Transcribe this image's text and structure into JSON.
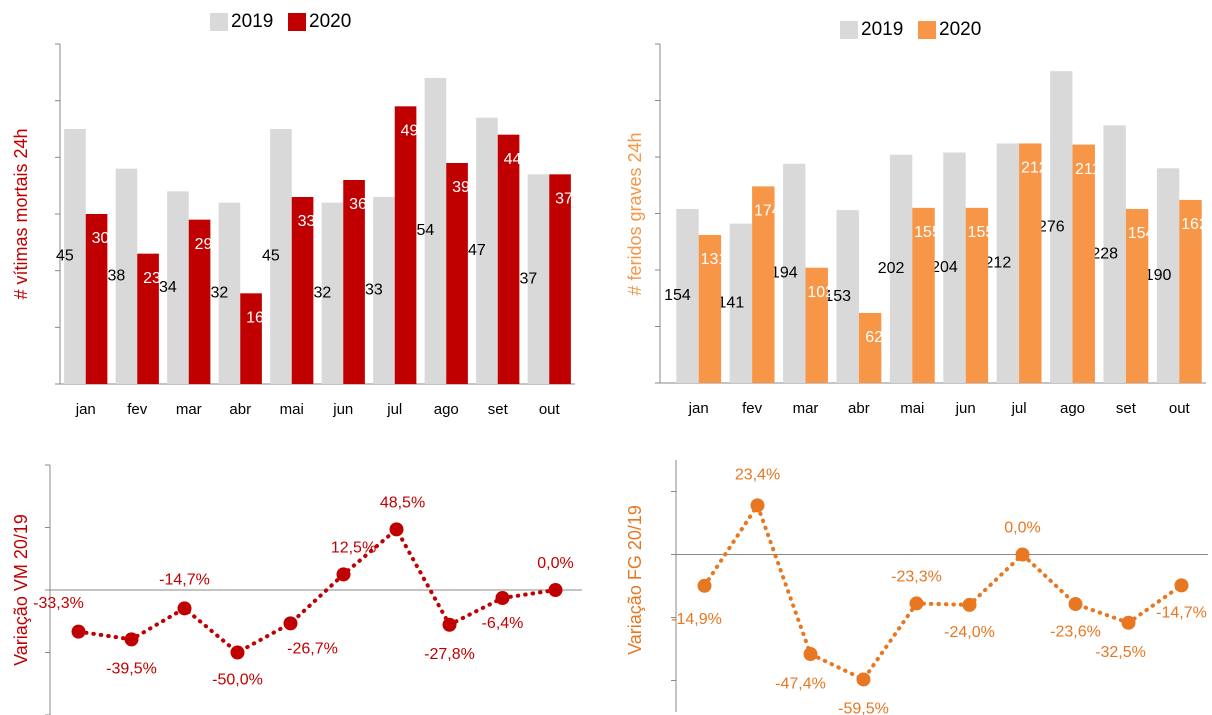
{
  "chart_data": [
    {
      "type": "bar",
      "y_label": "# vítimas mortais 24h",
      "categories": [
        "jan",
        "fev",
        "mar",
        "abr",
        "mai",
        "jun",
        "jul",
        "ago",
        "set",
        "out"
      ],
      "series": [
        {
          "name": "2019",
          "color": "#d9d9d9",
          "label_color": "#000000",
          "values": [
            45,
            38,
            34,
            32,
            45,
            32,
            33,
            54,
            47,
            37
          ]
        },
        {
          "name": "2020",
          "color": "#c00000",
          "label_color": "#ffffff",
          "values": [
            30,
            23,
            29,
            16,
            33,
            36,
            49,
            39,
            44,
            37
          ]
        }
      ],
      "ylim": [
        0,
        60
      ],
      "yticks": [
        0,
        10,
        20,
        30,
        40,
        50,
        60
      ],
      "ytick_labels": false,
      "label_color": "#c00000"
    },
    {
      "type": "bar",
      "y_label": "# feridos graves 24h",
      "categories": [
        "jan",
        "fev",
        "mar",
        "abr",
        "mai",
        "jun",
        "jul",
        "ago",
        "set",
        "out"
      ],
      "series": [
        {
          "name": "2019",
          "color": "#d9d9d9",
          "label_color": "#000000",
          "values": [
            154,
            141,
            194,
            153,
            202,
            204,
            212,
            276,
            228,
            190
          ]
        },
        {
          "name": "2020",
          "color": "#f79646",
          "label_color": "#ffffff",
          "values": [
            131,
            174,
            102,
            62,
            155,
            155,
            212,
            211,
            154,
            162
          ]
        }
      ],
      "ylim": [
        0,
        300
      ],
      "yticks": [
        0,
        50,
        100,
        150,
        200,
        250,
        300
      ],
      "ytick_labels": false,
      "label_color": "#f79646"
    },
    {
      "type": "line",
      "y_label": "Variação VM 20/19",
      "color": "#c00000",
      "values": [
        -33.3,
        -39.5,
        -14.7,
        -50.0,
        -26.7,
        12.5,
        48.5,
        -27.8,
        -6.4,
        0.0
      ],
      "value_labels": [
        "-33,3%",
        "-39,5%",
        "-14,7%",
        "-50,0%",
        "-26,7%",
        "12,5%",
        "48,5%",
        "-27,8%",
        "-6,4%",
        "0,0%"
      ],
      "ylim": [
        -100,
        100
      ],
      "yticks": [
        -100,
        -50,
        0,
        50,
        100
      ],
      "ytick_labels": false,
      "label_color": "#c00000"
    },
    {
      "type": "line",
      "y_label": "Variação FG 20/19",
      "color": "#e87722",
      "values": [
        -14.9,
        23.4,
        -47.4,
        -59.5,
        -23.3,
        -24.0,
        0.0,
        -23.6,
        -32.5,
        -14.7
      ],
      "value_labels": [
        "-14,9%",
        "23,4%",
        "-47,4%",
        "-59,5%",
        "-23,3%",
        "-24,0%",
        "0,0%",
        "-23,6%",
        "-32,5%",
        "-14,7%"
      ],
      "ylim": [
        -75,
        45
      ],
      "yticks": [
        -60,
        -30,
        0,
        30
      ],
      "ytick_labels": false,
      "label_color": "#e87722"
    }
  ]
}
